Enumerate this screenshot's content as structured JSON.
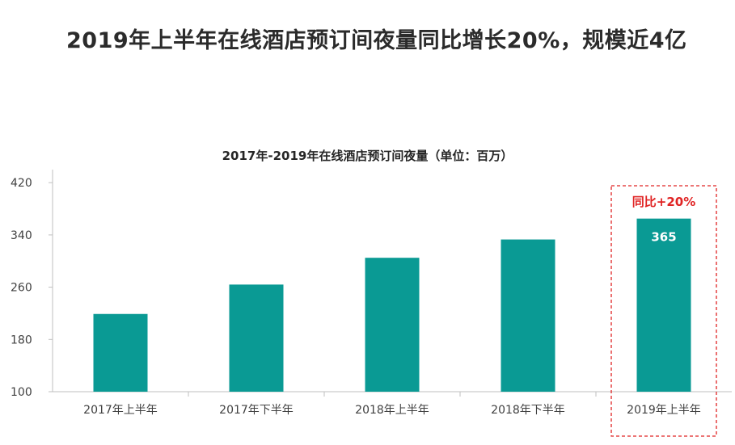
{
  "headline": "2019年上半年在线酒店预订间夜量同比增长20%，规模近4亿",
  "chart_data": {
    "type": "bar",
    "title": "2017年-2019年在线酒店预订间夜量（单位：百万）",
    "categories": [
      "2017年上半年",
      "2017年下半年",
      "2018年上半年",
      "2018年下半年",
      "2019年上半年"
    ],
    "values": [
      219,
      264,
      305,
      333,
      365
    ],
    "data_labels": [
      "",
      "",
      "",
      "",
      "365"
    ],
    "ylim": [
      100,
      440
    ],
    "yticks": [
      100,
      180,
      260,
      340,
      420
    ],
    "xlabel": "",
    "ylabel": "",
    "grid": false,
    "legend": "none",
    "highlight_index": 4,
    "annotation": "同比+20%",
    "bar_color": "#0a9a94",
    "annotation_color": "#e02424"
  }
}
